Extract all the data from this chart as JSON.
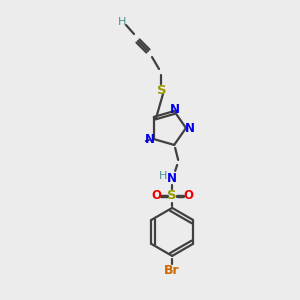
{
  "bg_color": "#ececec",
  "C": "#404040",
  "H": "#4a9090",
  "N": "#0000ee",
  "O": "#ee0000",
  "S": "#999900",
  "Br": "#cc6600",
  "bond_color": "#404040",
  "bond_lw": 1.6
}
